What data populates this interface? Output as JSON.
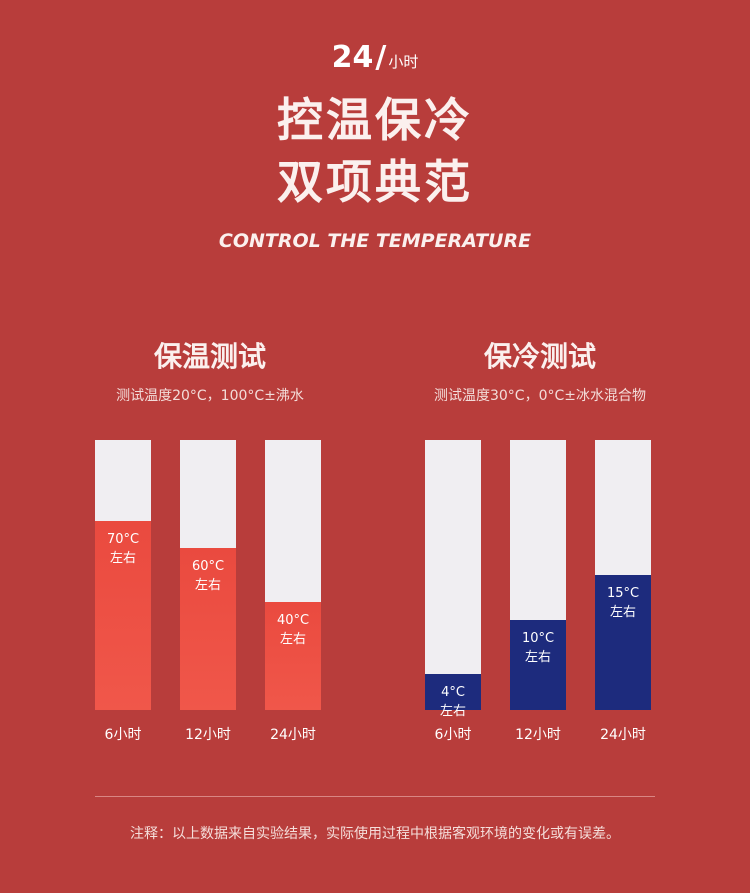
{
  "hero": {
    "hours_num": "24",
    "hours_slash": "/",
    "hours_unit": "小时",
    "headline_1": "控温保冷",
    "headline_2": "双项典范",
    "subtitle": "CONTROL THE TEMPERATURE"
  },
  "colors": {
    "background": "#b83d3b",
    "bar_track": "#f0eef2",
    "hot_bar_top": "#f0574a",
    "hot_bar_bottom": "#ea4a3f",
    "cold_bar": "#1d2b7d"
  },
  "hot_panel": {
    "title": "保温测试",
    "desc": "测试温度20°C，100°C±沸水"
  },
  "cold_panel": {
    "title": "保冷测试",
    "desc": "测试温度30°C，0°C±冰水混合物"
  },
  "chart_data": [
    {
      "type": "bar",
      "title": "保温测试",
      "categories": [
        "6小时",
        "12小时",
        "24小时"
      ],
      "values": [
        70,
        60,
        40
      ],
      "value_labels": [
        "70°C",
        "60°C",
        "40°C"
      ],
      "sublabel": "左右",
      "ylim": [
        0,
        100
      ],
      "color": "#ea4a3f"
    },
    {
      "type": "bar",
      "title": "保冷测试",
      "categories": [
        "6小时",
        "12小时",
        "24小时"
      ],
      "values": [
        4,
        10,
        15
      ],
      "value_labels": [
        "4°C",
        "10°C",
        "15°C"
      ],
      "sublabel": "左右",
      "ylim": [
        0,
        30
      ],
      "color": "#1d2b7d"
    }
  ],
  "footer": {
    "note": "注释：以上数据来自实验结果，实际使用过程中根据客观环境的变化或有误差。"
  }
}
